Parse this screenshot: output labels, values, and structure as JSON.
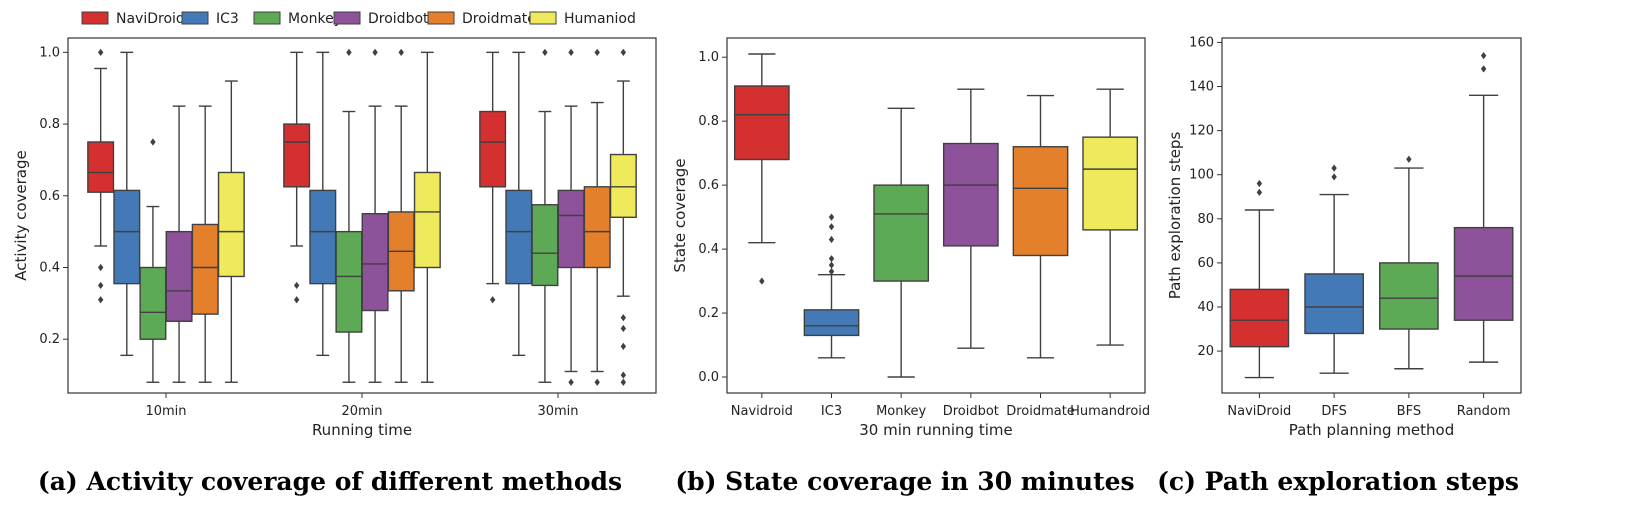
{
  "colors": {
    "red": "#d3302f",
    "blue": "#4479b8",
    "green": "#5ea955",
    "purple": "#8e529b",
    "orange": "#e4802b",
    "yellow": "#eeea5b",
    "line": "#404040"
  },
  "chart_data": [
    {
      "type": "box",
      "caption": "(a) Activity coverage of different methods",
      "xlabel": "Running time",
      "ylabel": "Activity coverage",
      "ylim": [
        0.05,
        1.04
      ],
      "yticks": [
        "0.2",
        "0.4",
        "0.6",
        "0.8",
        "1.0"
      ],
      "categories": [
        "10min",
        "20min",
        "30min"
      ],
      "legend": {
        "placement": "top"
      },
      "series": [
        {
          "name": "NaviDroid",
          "color": "red",
          "boxes": [
            {
              "whislo": 0.46,
              "q1": 0.61,
              "med": 0.665,
              "q3": 0.75,
              "whishi": 0.955,
              "fliers": [
                1.0,
                0.4,
                0.35,
                0.31
              ]
            },
            {
              "whislo": 0.46,
              "q1": 0.625,
              "med": 0.75,
              "q3": 0.8,
              "whishi": 1.0,
              "fliers": [
                0.35,
                0.31
              ]
            },
            {
              "whislo": 0.355,
              "q1": 0.625,
              "med": 0.75,
              "q3": 0.835,
              "whishi": 1.0,
              "fliers": [
                0.31
              ]
            }
          ]
        },
        {
          "name": "IC3",
          "color": "blue",
          "boxes": [
            {
              "whislo": 0.155,
              "q1": 0.355,
              "med": 0.5,
              "q3": 0.615,
              "whishi": 1.0,
              "fliers": []
            },
            {
              "whislo": 0.155,
              "q1": 0.355,
              "med": 0.5,
              "q3": 0.615,
              "whishi": 1.0,
              "fliers": []
            },
            {
              "whislo": 0.155,
              "q1": 0.355,
              "med": 0.5,
              "q3": 0.615,
              "whishi": 1.0,
              "fliers": []
            }
          ]
        },
        {
          "name": "Monkey",
          "color": "green",
          "boxes": [
            {
              "whislo": 0.08,
              "q1": 0.2,
              "med": 0.275,
              "q3": 0.4,
              "whishi": 0.57,
              "fliers": [
                0.75
              ]
            },
            {
              "whislo": 0.08,
              "q1": 0.22,
              "med": 0.375,
              "q3": 0.5,
              "whishi": 0.835,
              "fliers": [
                1.0
              ]
            },
            {
              "whislo": 0.08,
              "q1": 0.35,
              "med": 0.44,
              "q3": 0.575,
              "whishi": 0.835,
              "fliers": [
                1.0
              ]
            }
          ]
        },
        {
          "name": "Droidbot",
          "color": "purple",
          "boxes": [
            {
              "whislo": 0.08,
              "q1": 0.25,
              "med": 0.335,
              "q3": 0.5,
              "whishi": 0.85,
              "fliers": []
            },
            {
              "whislo": 0.08,
              "q1": 0.28,
              "med": 0.41,
              "q3": 0.55,
              "whishi": 0.85,
              "fliers": [
                1.0
              ]
            },
            {
              "whislo": 0.11,
              "q1": 0.4,
              "med": 0.545,
              "q3": 0.615,
              "whishi": 0.85,
              "fliers": [
                1.0,
                0.08
              ]
            }
          ]
        },
        {
          "name": "Droidmate",
          "color": "orange",
          "boxes": [
            {
              "whislo": 0.08,
              "q1": 0.27,
              "med": 0.4,
              "q3": 0.52,
              "whishi": 0.85,
              "fliers": []
            },
            {
              "whislo": 0.08,
              "q1": 0.335,
              "med": 0.445,
              "q3": 0.555,
              "whishi": 0.85,
              "fliers": [
                1.0
              ]
            },
            {
              "whislo": 0.11,
              "q1": 0.4,
              "med": 0.5,
              "q3": 0.625,
              "whishi": 0.86,
              "fliers": [
                1.0,
                0.08
              ]
            }
          ]
        },
        {
          "name": "Humaniod",
          "color": "yellow",
          "boxes": [
            {
              "whislo": 0.08,
              "q1": 0.375,
              "med": 0.5,
              "q3": 0.665,
              "whishi": 0.92,
              "fliers": []
            },
            {
              "whislo": 0.08,
              "q1": 0.4,
              "med": 0.555,
              "q3": 0.665,
              "whishi": 1.0,
              "fliers": []
            },
            {
              "whislo": 0.32,
              "q1": 0.54,
              "med": 0.625,
              "q3": 0.715,
              "whishi": 0.92,
              "fliers": [
                1.0,
                0.26,
                0.23,
                0.18,
                0.1,
                0.08
              ]
            }
          ]
        }
      ]
    },
    {
      "type": "box",
      "caption": "(b) State coverage in 30 minutes",
      "xlabel": "30 min running time",
      "ylabel": "State coverage",
      "ylim": [
        -0.05,
        1.06
      ],
      "yticks": [
        "0.0",
        "0.2",
        "0.4",
        "0.6",
        "0.8",
        "1.0"
      ],
      "categories": [
        "Navidroid",
        "IC3",
        "Monkey",
        "Droidbot",
        "Droidmate",
        "Humandroid"
      ],
      "colors": [
        "red",
        "blue",
        "green",
        "purple",
        "orange",
        "yellow"
      ],
      "boxes": [
        {
          "whislo": 0.42,
          "q1": 0.68,
          "med": 0.82,
          "q3": 0.91,
          "whishi": 1.01,
          "fliers": [
            0.3
          ]
        },
        {
          "whislo": 0.06,
          "q1": 0.13,
          "med": 0.16,
          "q3": 0.21,
          "whishi": 0.32,
          "fliers": [
            0.5,
            0.47,
            0.43,
            0.37,
            0.35,
            0.33
          ]
        },
        {
          "whislo": 0.0,
          "q1": 0.3,
          "med": 0.51,
          "q3": 0.6,
          "whishi": 0.84,
          "fliers": []
        },
        {
          "whislo": 0.09,
          "q1": 0.41,
          "med": 0.6,
          "q3": 0.73,
          "whishi": 0.9,
          "fliers": []
        },
        {
          "whislo": 0.06,
          "q1": 0.38,
          "med": 0.59,
          "q3": 0.72,
          "whishi": 0.88,
          "fliers": []
        },
        {
          "whislo": 0.1,
          "q1": 0.46,
          "med": 0.65,
          "q3": 0.75,
          "whishi": 0.9,
          "fliers": []
        }
      ]
    },
    {
      "type": "box",
      "caption": "(c) Path exploration steps",
      "xlabel": "Path planning method",
      "ylabel": "Path exploration steps",
      "ylim": [
        1,
        162
      ],
      "yticks": [
        "20",
        "40",
        "60",
        "80",
        "100",
        "120",
        "140",
        "160"
      ],
      "categories": [
        "NaviDroid",
        "DFS",
        "BFS",
        "Random"
      ],
      "colors": [
        "red",
        "blue",
        "green",
        "purple"
      ],
      "boxes": [
        {
          "whislo": 8,
          "q1": 22,
          "med": 34,
          "q3": 48,
          "whishi": 84,
          "fliers": [
            96,
            92
          ]
        },
        {
          "whislo": 10,
          "q1": 28,
          "med": 40,
          "q3": 55,
          "whishi": 91,
          "fliers": [
            103,
            99
          ]
        },
        {
          "whislo": 12,
          "q1": 30,
          "med": 44,
          "q3": 60,
          "whishi": 103,
          "fliers": [
            107
          ]
        },
        {
          "whislo": 15,
          "q1": 34,
          "med": 54,
          "q3": 76,
          "whishi": 136,
          "fliers": [
            154,
            148
          ]
        }
      ]
    }
  ]
}
